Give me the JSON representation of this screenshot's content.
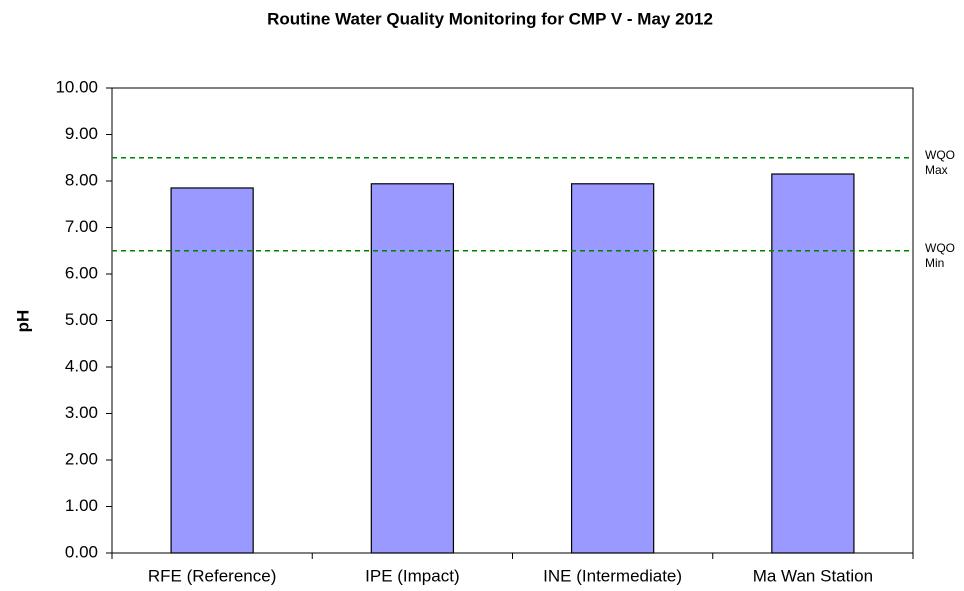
{
  "chart_data": {
    "type": "bar",
    "title": "Routine Water Quality Monitoring for CMP V - May 2012",
    "y_label": "pH",
    "categories": [
      "RFE (Reference)",
      "IPE (Impact)",
      "INE (Intermediate)",
      "Ma Wan Station"
    ],
    "values": [
      7.85,
      7.94,
      7.94,
      8.15
    ],
    "color": "#9999ff",
    "ylim": [
      0,
      10
    ],
    "yticks": [
      {
        "value": 0,
        "label": "0.00"
      },
      {
        "value": 1,
        "label": "1.00"
      },
      {
        "value": 2,
        "label": "2.00"
      },
      {
        "value": 3,
        "label": "3.00"
      },
      {
        "value": 4,
        "label": "4.00"
      },
      {
        "value": 5,
        "label": "5.00"
      },
      {
        "value": 6,
        "label": "6.00"
      },
      {
        "value": 7,
        "label": "7.00"
      },
      {
        "value": 8,
        "label": "8.00"
      },
      {
        "value": 9,
        "label": "9.00"
      },
      {
        "value": 10,
        "label": "10.00"
      }
    ],
    "grid": false,
    "reference_lines": [
      {
        "value": 8.5,
        "label": [
          "WQO",
          "Max"
        ],
        "color": "#008000"
      },
      {
        "value": 6.5,
        "label": [
          "WQO",
          "Min"
        ],
        "color": "#008000"
      }
    ]
  }
}
